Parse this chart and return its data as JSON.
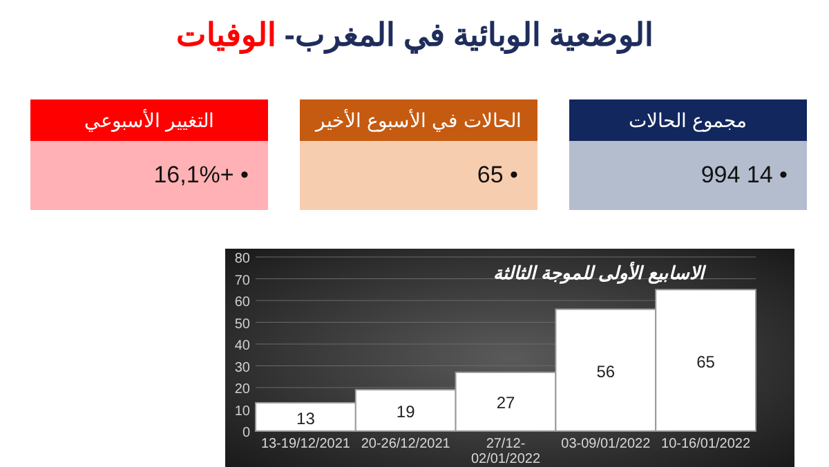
{
  "chart_data": [
    {
      "type": "other",
      "title": "الوضعية الوبائية في المغرب- الوفيات",
      "annotations": [
        "مجموع الحالات",
        "994 14 •",
        "الحالات في الأسبوع الأخير",
        "65 •",
        "التغيير الأسبوعي",
        "16,1%+ •"
      ],
      "colors": [
        "#12275e",
        "#b3bdcd",
        "#c55a11",
        "#f7cdb0",
        "#ff0000",
        "#ffb1b5"
      ]
    },
    {
      "type": "bar",
      "title": "الاسابيع الأولى للموجة الثالثة",
      "categories": [
        "13-19/12/2021",
        "20-26/12/2021",
        "27/12-02/01/2022",
        "03-09/01/2022",
        "10-16/01/2022"
      ],
      "values": [
        13,
        19,
        27,
        56,
        65
      ],
      "color": "#ffffff",
      "ylim": [
        0,
        80
      ],
      "yticks": [
        0,
        10,
        20,
        30,
        40,
        50,
        60,
        70,
        80
      ],
      "grid": "y",
      "data_labels": true
    }
  ]
}
